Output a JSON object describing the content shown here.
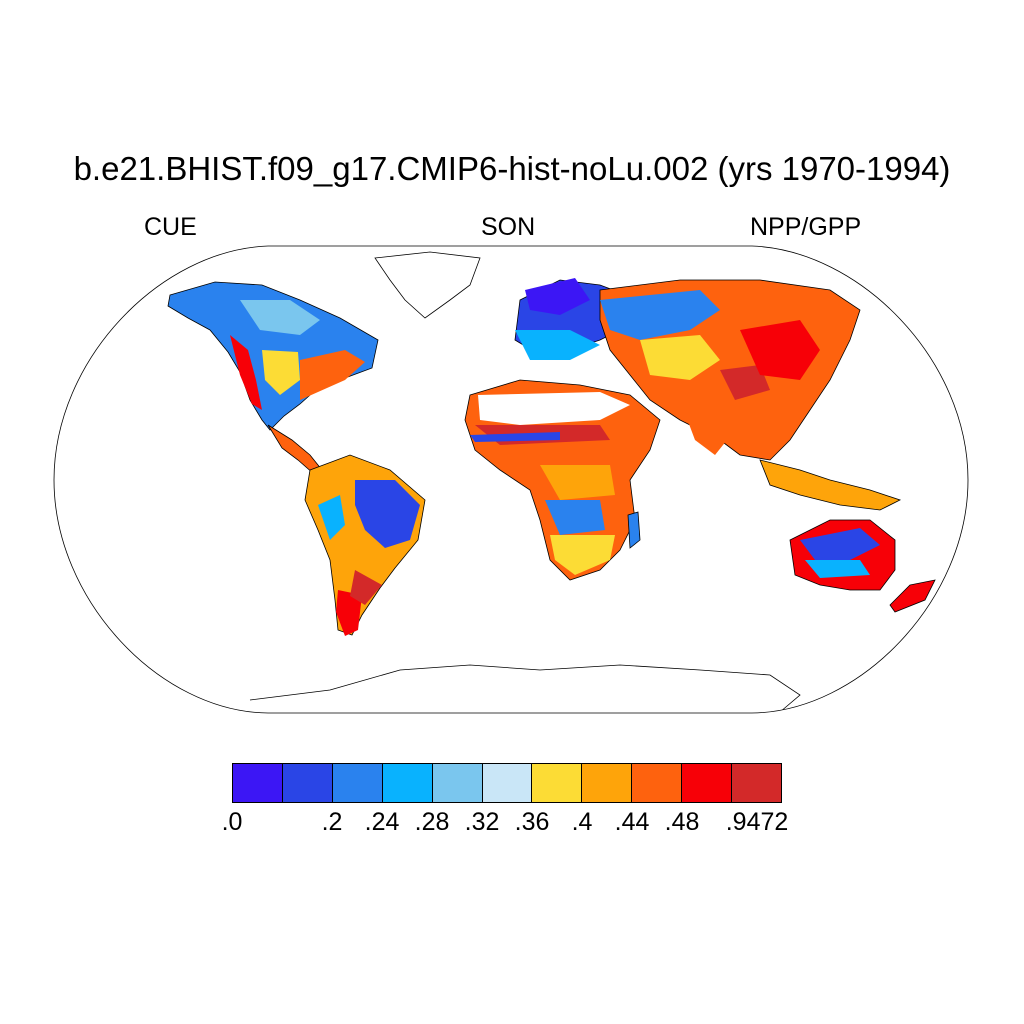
{
  "title": "b.e21.BHIST.f09_g17.CMIP6-hist-noLu.002 (yrs 1970-1994)",
  "subtitle_left": "CUE",
  "subtitle_center": "SON",
  "subtitle_right": "NPP/GPP",
  "colorbar": {
    "colors": [
      "#3c16f5",
      "#2a45e6",
      "#2a82ee",
      "#09b2fe",
      "#7ac6ee",
      "#c9e6f7",
      "#fcdc35",
      "#fea40a",
      "#fe620e",
      "#f70007",
      "#d32929"
    ],
    "labels": [
      ".0",
      ".2",
      ".24",
      ".28",
      ".32",
      ".36",
      ".4",
      ".44",
      ".48",
      ".9472"
    ]
  },
  "map_colors": {
    "land_outline": "#000000",
    "frame": "#000000",
    "missing": "#ffffff"
  }
}
